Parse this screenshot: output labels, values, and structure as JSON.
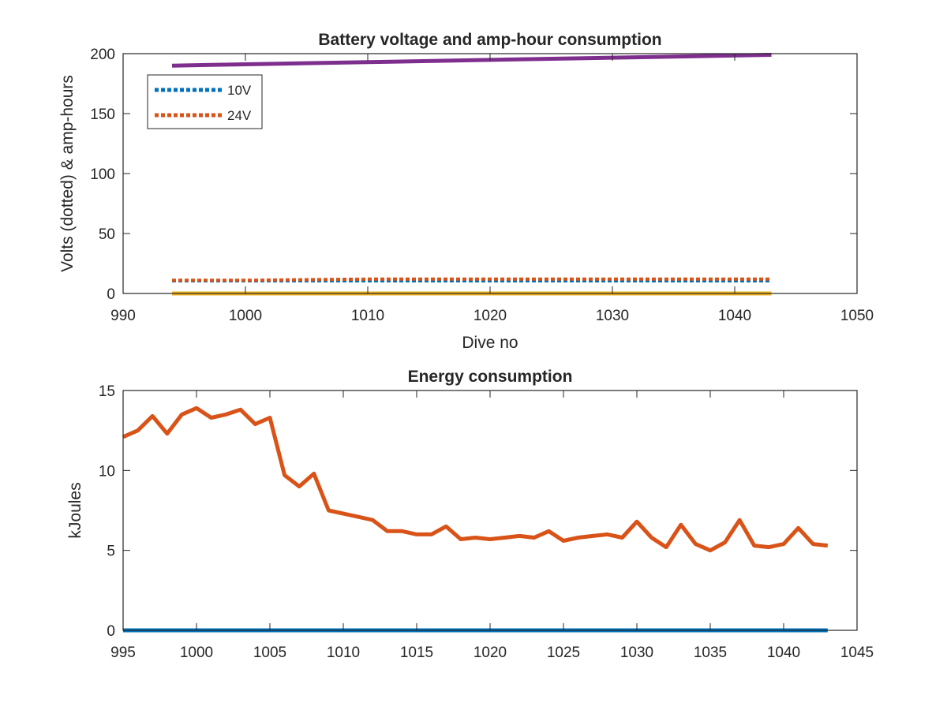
{
  "chart_data": [
    {
      "type": "line",
      "title": "Battery voltage and amp-hour consumption",
      "xlabel": "Dive no",
      "ylabel": "Volts (dotted) & amp-hours",
      "xlim": [
        990,
        1050
      ],
      "ylim": [
        0,
        200
      ],
      "xticks": [
        "990",
        "1000",
        "1010",
        "1020",
        "1030",
        "1040",
        "1050"
      ],
      "yticks": [
        "0",
        "50",
        "100",
        "150",
        "200"
      ],
      "legend_position": "top-left",
      "series": [
        {
          "name": "10V",
          "style": "dotted",
          "color": "#0072BD",
          "x": [
            994,
            1043
          ],
          "y": [
            10.5,
            10.5
          ]
        },
        {
          "name": "24V",
          "style": "dotted",
          "color": "#D95319",
          "x": [
            994,
            1000,
            1010,
            1020,
            1030,
            1043
          ],
          "y": [
            11,
            11,
            12,
            12,
            12,
            12
          ]
        },
        {
          "style": "solid",
          "color": "#EDB120",
          "x": [
            994,
            1043
          ],
          "y": [
            0,
            0
          ]
        },
        {
          "style": "solid",
          "color": "#7E2F8E",
          "x": [
            994,
            1043
          ],
          "y": [
            190,
            199
          ]
        }
      ]
    },
    {
      "type": "line",
      "title": "Energy consumption",
      "xlabel": "",
      "ylabel": "kJoules",
      "xlim": [
        995,
        1045
      ],
      "ylim": [
        0,
        15
      ],
      "xticks": [
        "995",
        "1000",
        "1005",
        "1010",
        "1015",
        "1020",
        "1025",
        "1030",
        "1035",
        "1040",
        "1045"
      ],
      "yticks": [
        "0",
        "5",
        "10",
        "15"
      ],
      "series": [
        {
          "style": "solid",
          "color": "#0072BD",
          "x": [
            995,
            1043
          ],
          "y": [
            0,
            0
          ]
        },
        {
          "style": "solid",
          "color": "#D95319",
          "x": [
            995,
            996,
            997,
            998,
            999,
            1000,
            1001,
            1002,
            1003,
            1004,
            1005,
            1006,
            1007,
            1008,
            1009,
            1010,
            1011,
            1012,
            1013,
            1014,
            1015,
            1016,
            1017,
            1018,
            1019,
            1020,
            1021,
            1022,
            1023,
            1024,
            1025,
            1026,
            1027,
            1028,
            1029,
            1030,
            1031,
            1032,
            1033,
            1034,
            1035,
            1036,
            1037,
            1038,
            1039,
            1040,
            1041,
            1042,
            1043
          ],
          "y": [
            12.1,
            12.5,
            13.4,
            12.3,
            13.5,
            13.9,
            13.3,
            13.5,
            13.8,
            12.9,
            13.3,
            9.7,
            9.0,
            9.8,
            7.5,
            7.3,
            7.1,
            6.9,
            6.2,
            6.2,
            6.0,
            6.0,
            6.5,
            5.7,
            5.8,
            5.7,
            5.8,
            5.9,
            5.8,
            6.2,
            5.6,
            5.8,
            5.9,
            6.0,
            5.8,
            6.8,
            5.8,
            5.2,
            6.6,
            5.4,
            5.0,
            5.5,
            6.9,
            5.3,
            5.2,
            5.4,
            6.4,
            5.4,
            5.3
          ]
        }
      ]
    }
  ]
}
